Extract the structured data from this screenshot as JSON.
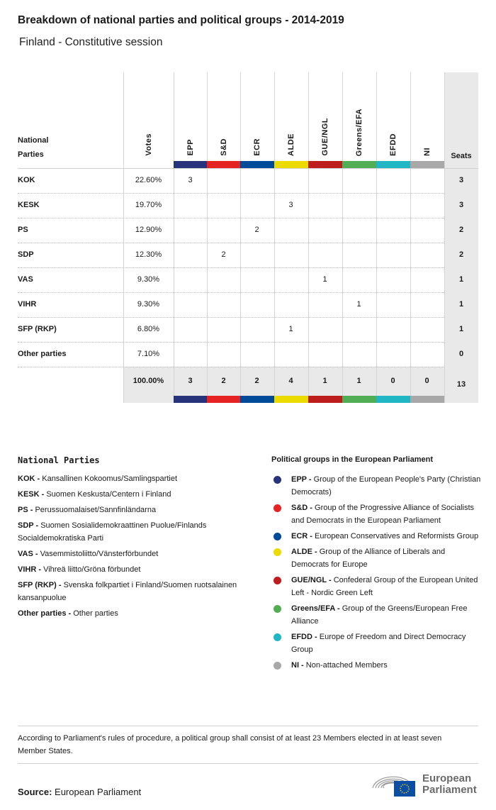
{
  "title": "Breakdown of national parties and political groups - 2014-2019",
  "subtitle": "Finland - Constitutive session",
  "table": {
    "party_header": "National Parties",
    "votes_header": "Votes",
    "seats_header": "Seats",
    "groups": [
      {
        "name": "EPP",
        "color": "#27337a"
      },
      {
        "name": "S&D",
        "color": "#e52322"
      },
      {
        "name": "ECR",
        "color": "#004a9a"
      },
      {
        "name": "ALDE",
        "color": "#ecdb00"
      },
      {
        "name": "GUE/NGL",
        "color": "#be1d1e"
      },
      {
        "name": "Greens/EFA",
        "color": "#52ae55"
      },
      {
        "name": "EFDD",
        "color": "#20b6c3"
      },
      {
        "name": "NI",
        "color": "#a8a8a8"
      }
    ],
    "rows": [
      {
        "party": "KOK",
        "votes": "22.60%",
        "cells": [
          "3",
          "",
          "",
          "",
          "",
          "",
          "",
          ""
        ],
        "seats": "3"
      },
      {
        "party": "KESK",
        "votes": "19.70%",
        "cells": [
          "",
          "",
          "",
          "3",
          "",
          "",
          "",
          ""
        ],
        "seats": "3"
      },
      {
        "party": "PS",
        "votes": "12.90%",
        "cells": [
          "",
          "",
          "2",
          "",
          "",
          "",
          "",
          ""
        ],
        "seats": "2"
      },
      {
        "party": "SDP",
        "votes": "12.30%",
        "cells": [
          "",
          "2",
          "",
          "",
          "",
          "",
          "",
          ""
        ],
        "seats": "2"
      },
      {
        "party": "VAS",
        "votes": "9.30%",
        "cells": [
          "",
          "",
          "",
          "",
          "1",
          "",
          "",
          ""
        ],
        "seats": "1"
      },
      {
        "party": "VIHR",
        "votes": "9.30%",
        "cells": [
          "",
          "",
          "",
          "",
          "",
          "1",
          "",
          ""
        ],
        "seats": "1"
      },
      {
        "party": "SFP (RKP)",
        "votes": "6.80%",
        "cells": [
          "",
          "",
          "",
          "1",
          "",
          "",
          "",
          ""
        ],
        "seats": "1"
      },
      {
        "party": "Other parties",
        "votes": "7.10%",
        "cells": [
          "",
          "",
          "",
          "",
          "",
          "",
          "",
          ""
        ],
        "seats": "0"
      }
    ],
    "totals": {
      "votes": "100.00%",
      "cells": [
        "3",
        "2",
        "2",
        "4",
        "1",
        "1",
        "0",
        "0"
      ],
      "seats": "13"
    }
  },
  "legend": {
    "national_title": "National Parties",
    "national": [
      {
        "abbr": "KOK -",
        "name": "Kansallinen Kokoomus/Samlingspartiet"
      },
      {
        "abbr": "KESK -",
        "name": "Suomen Keskusta/Centern i Finland"
      },
      {
        "abbr": "PS -",
        "name": "Perussuomalaiset/Sannfinländarna"
      },
      {
        "abbr": "SDP -",
        "name": "Suomen Sosialidemokraattinen Puolue/Finlands Socialdemokratiska Parti"
      },
      {
        "abbr": "VAS -",
        "name": "Vasemmistoliitto/Vänsterförbundet"
      },
      {
        "abbr": "VIHR -",
        "name": "Vihreä liitto/Gröna förbundet"
      },
      {
        "abbr": "SFP (RKP) -",
        "name": "Svenska folkpartiet i Finland/Suomen ruotsalainen kansanpuolue"
      },
      {
        "abbr": "Other parties -",
        "name": "Other parties"
      }
    ],
    "groups_title": "Political groups in the European Parliament",
    "groups": [
      {
        "abbr": "EPP -",
        "name": "Group of the European People's Party (Christian Democrats)",
        "color": "#27337a"
      },
      {
        "abbr": "S&D -",
        "name": "Group of the Progressive Alliance of Socialists and Democrats in the European Parliament",
        "color": "#e52322"
      },
      {
        "abbr": "ECR -",
        "name": "European Conservatives and Reformists Group",
        "color": "#004a9a"
      },
      {
        "abbr": "ALDE -",
        "name": "Group of the Alliance of Liberals and Democrats for Europe",
        "color": "#ecdb00"
      },
      {
        "abbr": "GUE/NGL -",
        "name": "Confederal Group of the European United Left - Nordic Green Left",
        "color": "#be1d1e"
      },
      {
        "abbr": "Greens/EFA -",
        "name": "Group of the Greens/European Free Alliance",
        "color": "#52ae55"
      },
      {
        "abbr": "EFDD -",
        "name": "Europe of Freedom and Direct Democracy Group",
        "color": "#20b6c3"
      },
      {
        "abbr": "NI -",
        "name": "Non-attached Members",
        "color": "#a8a8a8"
      }
    ]
  },
  "footnote": "According to Parliament's rules of procedure, a political group shall consist of at least 23 Members elected in at least seven Member States.",
  "source_label": "Source:",
  "source_value": "European Parliament",
  "logo_text": "European Parliament"
}
